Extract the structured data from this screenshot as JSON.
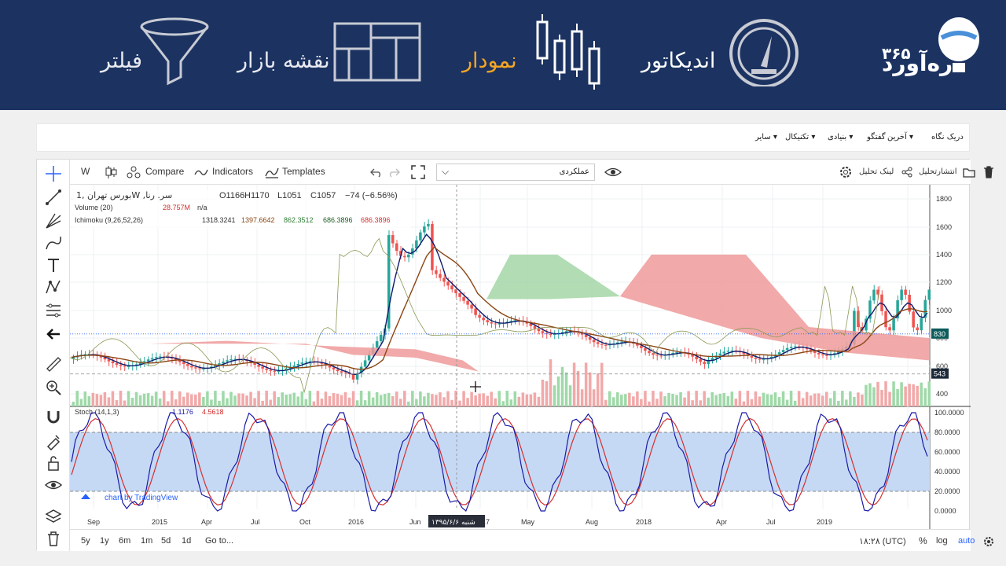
{
  "header": {
    "brand_name": "ره‌آورد",
    "brand_number": "۳۶۵",
    "nav": [
      {
        "label": "اندیکاتور",
        "active": false
      },
      {
        "label": "نمودار",
        "active": true
      },
      {
        "label": "نقشه بازار",
        "active": false
      },
      {
        "label": "فیلتر",
        "active": false
      }
    ],
    "active_color": "#f5a623"
  },
  "menubar": {
    "items": [
      "دریک نگاه",
      "آخرین",
      "گفتگو",
      "بنیادی",
      "تکنیکال",
      "سایر"
    ]
  },
  "toolbar": {
    "interval": "W",
    "compare": "Compare",
    "indicators": "Indicators",
    "templates": "Templates",
    "dropdown_value": "عملکردی",
    "share_link": "لینک تحلیل",
    "publish": "انتشارتحلیل"
  },
  "chart": {
    "legend": {
      "symbol": "بورس تهران ,1W ,سر. رنا",
      "open": "O1166",
      "high": "H1170",
      "low": "L1051",
      "close": "C1057",
      "change": "−74 (−6.56%)",
      "volume_label": "Volume (20)",
      "volume_value": "28.757M",
      "volume_na": "n/a",
      "ichimoku_label": "Ichimoku (9,26,52,26)",
      "ichi_values": [
        "1318.3241",
        "1397.6642",
        "862.3512",
        "686.3896",
        "686.3896"
      ],
      "stoch_label": "Stoch (14,1,3)",
      "stoch_k": "1.1176",
      "stoch_d": "4.5618"
    },
    "price_axis": [
      "1800",
      "1600",
      "1400",
      "1200",
      "1000",
      "800",
      "600",
      "400"
    ],
    "price_tags": {
      "last": "830",
      "ref": "543"
    },
    "stoch_axis": [
      "100.0000",
      "80.0000",
      "60.0000",
      "40.0000",
      "20.0000",
      "0.0000"
    ],
    "time_axis": [
      "Sep",
      "2015",
      "Apr",
      "Jul",
      "Oct",
      "2016",
      "Jun",
      "2017",
      "May",
      "Aug",
      "2018",
      "Apr",
      "Jul",
      "2019"
    ],
    "crosshair_date": "شنبه ۱۳۹۵/۶/۶",
    "watermark": "chart by TradingView",
    "colors": {
      "up": "#26a69a",
      "down": "#ef5350",
      "kumo_green": "#a5d6a7",
      "kumo_red": "#ef9a9a",
      "stoch_k": "#1a1aa6",
      "stoch_d": "#d32f2f"
    }
  },
  "bottombar": {
    "ranges": [
      "5y",
      "1y",
      "6m",
      "1m",
      "5d",
      "1d"
    ],
    "goto": "Go to...",
    "time": "۱۸:۲۸ (UTC)",
    "percent": "%",
    "log": "log",
    "auto": "auto"
  }
}
